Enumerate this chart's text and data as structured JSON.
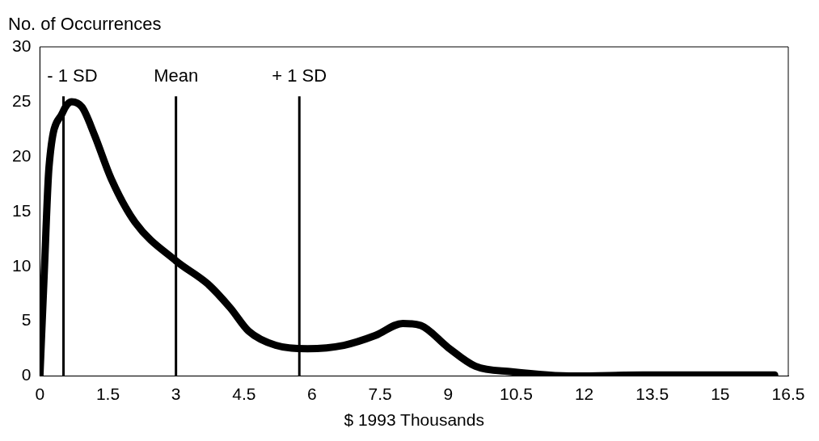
{
  "chart_data": {
    "type": "line",
    "ylabel": "No. of Occurrences",
    "xlabel": "$ 1993 Thousands",
    "x": [
      0,
      0.1,
      0.2,
      0.5,
      0.7,
      0.93,
      1.2,
      1.57,
      2.1,
      3,
      3.7,
      4.2,
      4.6,
      5.2,
      5.9,
      6.7,
      7.4,
      8.0,
      8.4,
      9,
      9.6,
      10.4,
      11.8,
      13.3,
      16.2
    ],
    "series": [
      {
        "color": "#000000",
        "values": [
          0,
          9.8,
          19,
          24,
          25,
          24.5,
          22,
          18,
          14,
          10.5,
          8.4,
          6.2,
          4.1,
          2.8,
          2.5,
          2.8,
          3.7,
          4.8,
          4.6,
          2.6,
          0.9,
          0.4,
          0,
          0.1,
          0.1
        ]
      }
    ],
    "xlim": [
      0,
      16.5
    ],
    "xticks": [
      0,
      1.5,
      3,
      4.5,
      6,
      7.5,
      9,
      10.5,
      12,
      13.5,
      15,
      16.5
    ],
    "ylim": [
      0,
      30
    ],
    "yticks": [
      0,
      5,
      10,
      15,
      20,
      25,
      30
    ],
    "grid": false,
    "legend": false,
    "marker": "none",
    "line_style": "solid",
    "ref_lines": [
      {
        "axis": "x",
        "value": 0.52,
        "label": "- 1 SD"
      },
      {
        "axis": "x",
        "value": 3,
        "label": "Mean"
      },
      {
        "axis": "x",
        "value": 5.72,
        "label": "+ 1 SD"
      }
    ]
  }
}
